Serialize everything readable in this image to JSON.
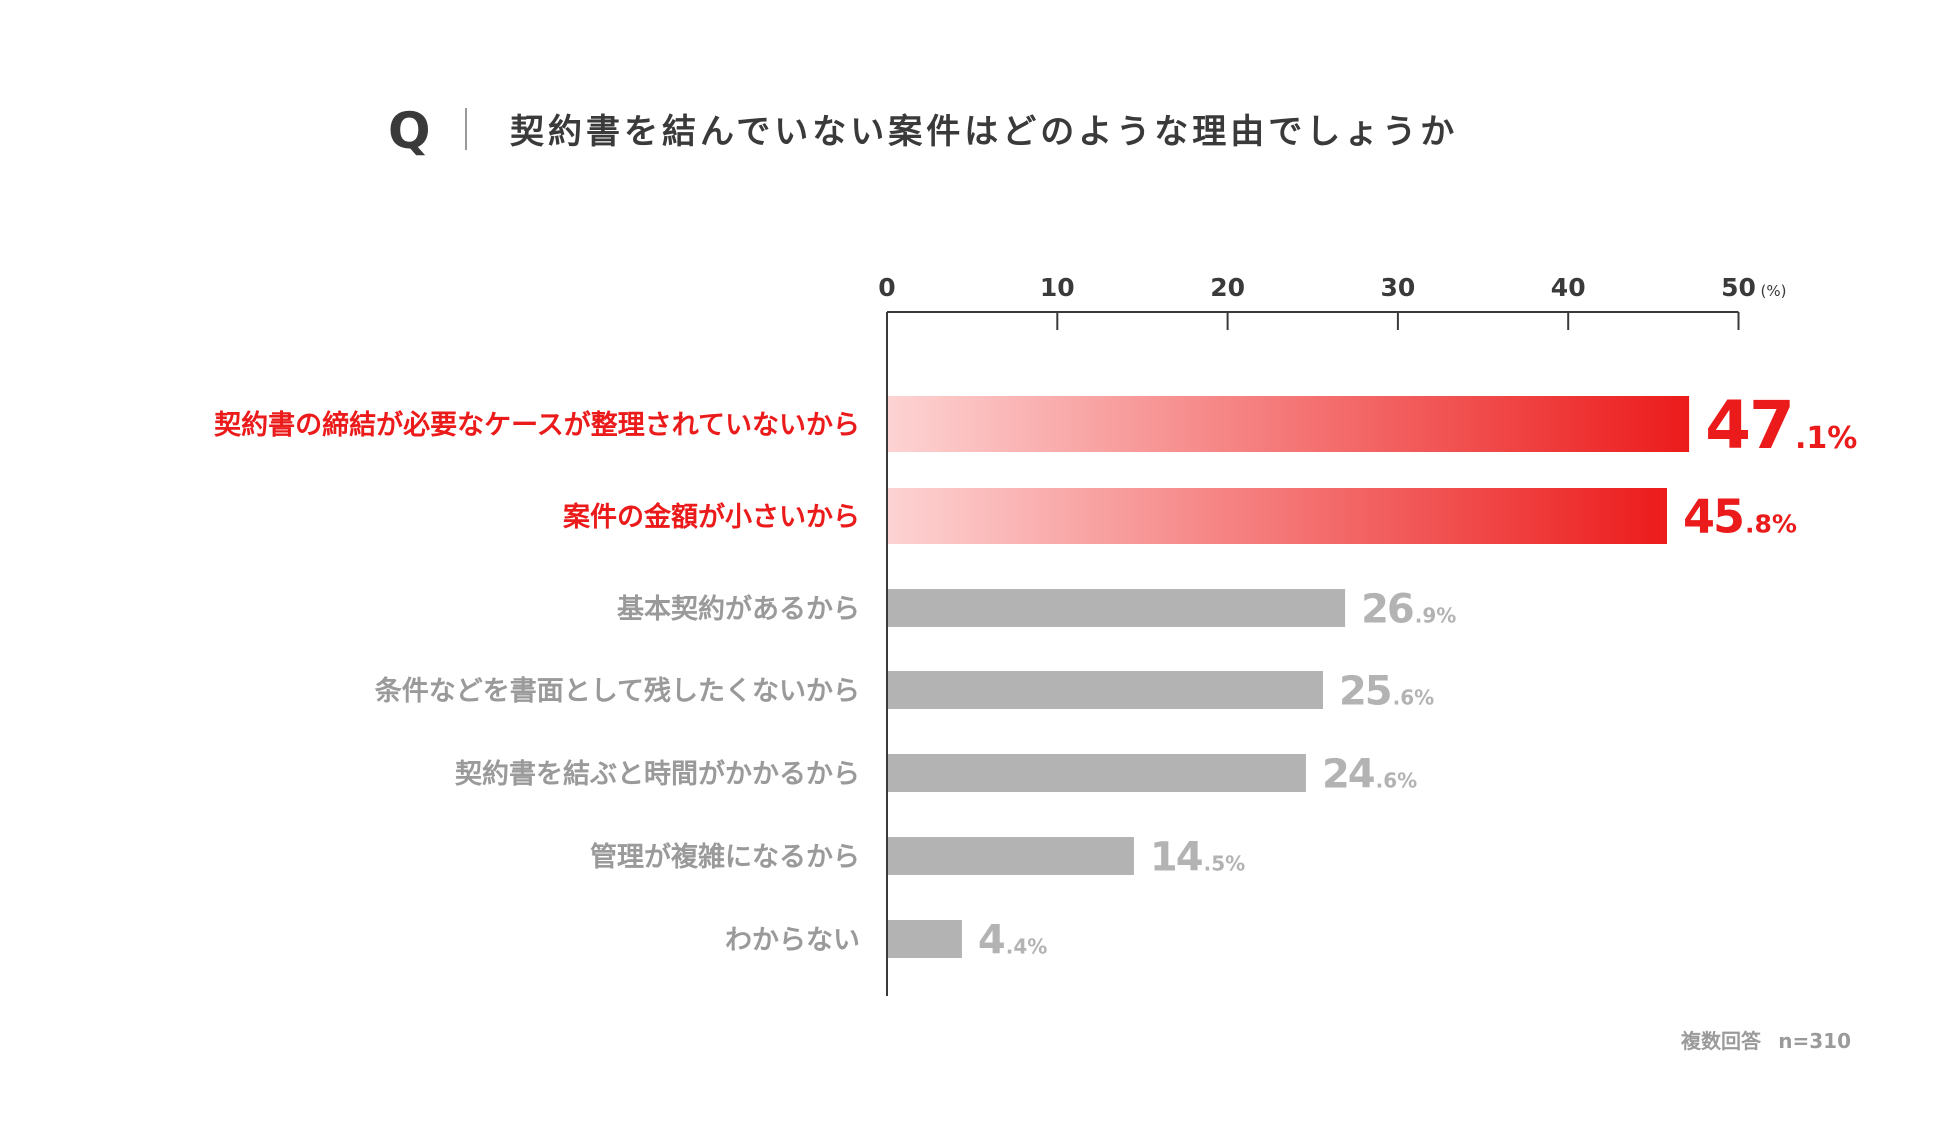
{
  "header": {
    "q_mark": "Q",
    "question": "契約書を結んでいない案件はどのような理由でしょうか"
  },
  "footer": {
    "response_type": "複数回答",
    "sample_size": "n=310"
  },
  "colors": {
    "highlight": "#ec1b1b",
    "highlight_light": "#fdd3d3",
    "neutral_bar": "#b3b3b3",
    "neutral_text": "#9a9a9a",
    "axis": "#3a3a3a"
  },
  "chart_data": {
    "type": "bar",
    "orientation": "horizontal",
    "title": "契約書を結んでいない案件はどのような理由でしょうか",
    "xlabel": "",
    "ylabel": "",
    "unit": "(%)",
    "xlim": [
      0,
      50
    ],
    "ticks": [
      "0",
      "10",
      "20",
      "30",
      "40",
      "50"
    ],
    "grid": false,
    "categories": [
      "契約書の締結が必要なケースが整理されていないから",
      "案件の金額が小さいから",
      "基本契約があるから",
      "条件などを書面として残したくないから",
      "契約書を結ぶと時間がかかるから",
      "管理が複雑になるから",
      "わからない"
    ],
    "values": [
      47.1,
      45.8,
      26.9,
      25.6,
      24.6,
      14.5,
      4.4
    ],
    "value_labels": [
      {
        "int": "47",
        "dec": ".1%"
      },
      {
        "int": "45",
        "dec": ".8%"
      },
      {
        "int": "26",
        "dec": ".9%"
      },
      {
        "int": "25",
        "dec": ".6%"
      },
      {
        "int": "24",
        "dec": ".6%"
      },
      {
        "int": "14",
        "dec": ".5%"
      },
      {
        "int": "4",
        "dec": ".4%"
      }
    ],
    "highlighted": [
      true,
      true,
      false,
      false,
      false,
      false,
      false
    ]
  }
}
